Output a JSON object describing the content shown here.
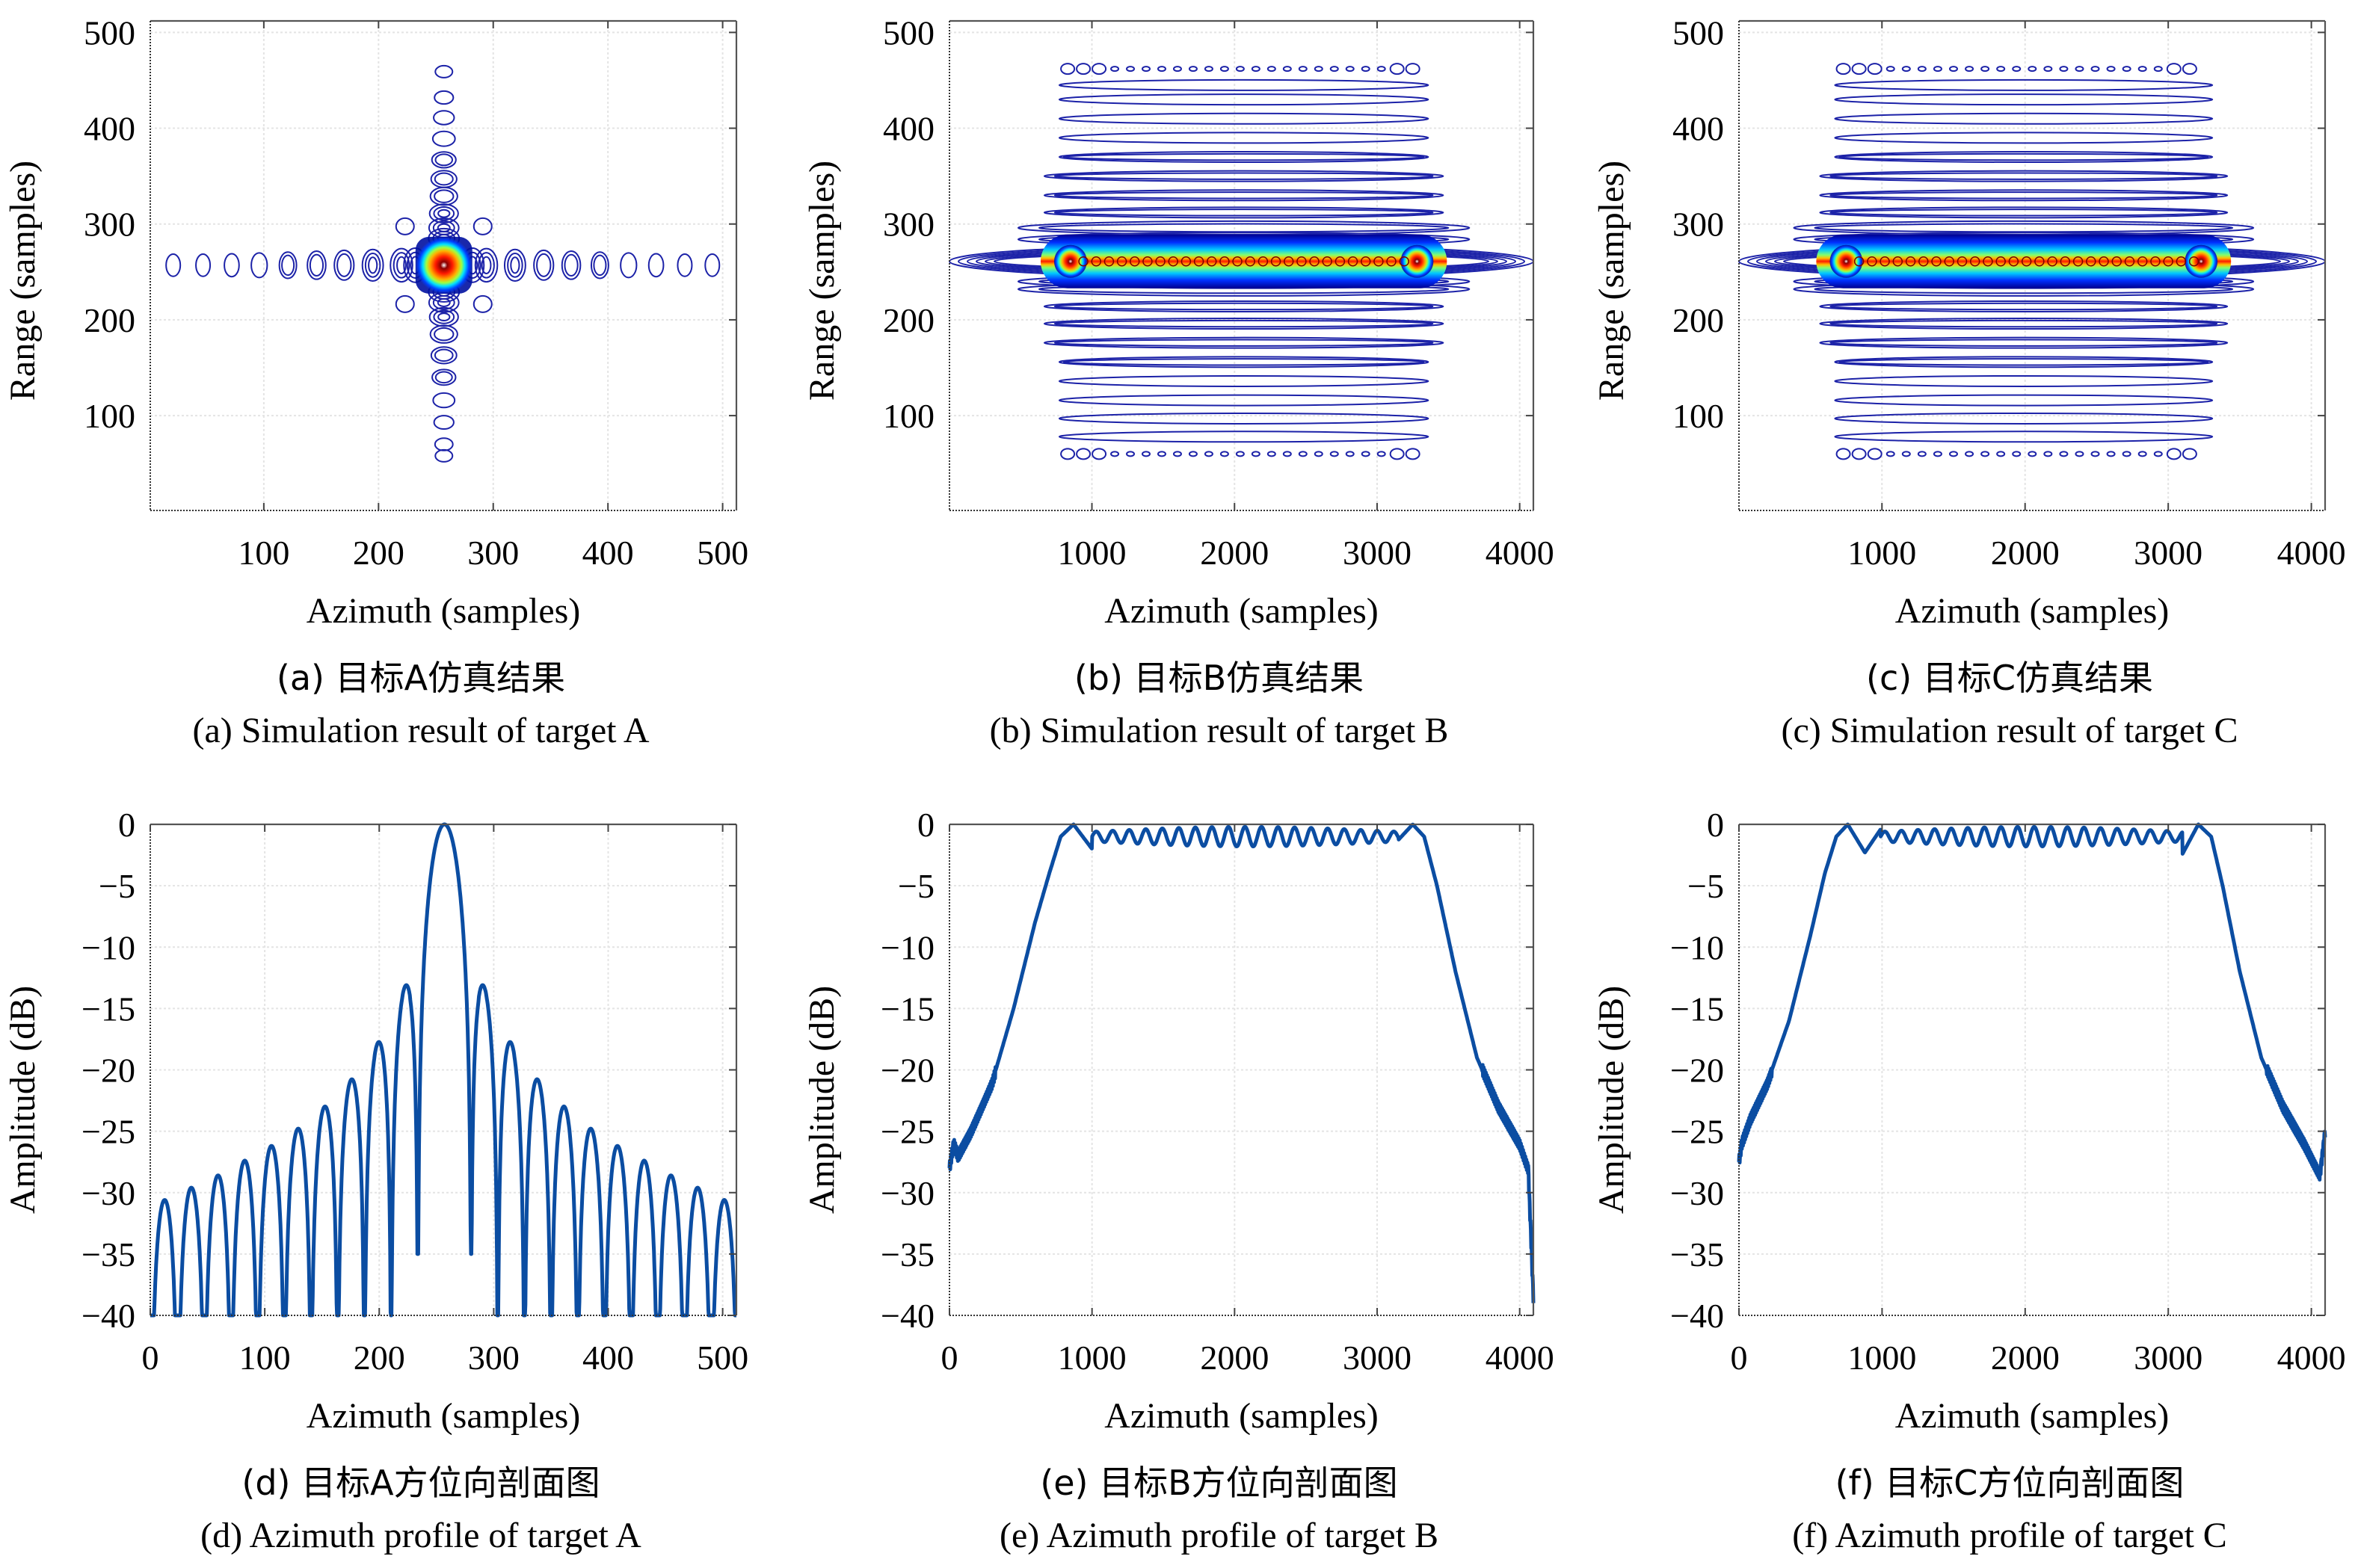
{
  "figure": {
    "panels": [
      {
        "id": "a",
        "caption_cn": "(a) 目标A仿真结果",
        "caption_en": "(a) Simulation result of target A"
      },
      {
        "id": "b",
        "caption_cn": "(b) 目标B仿真结果",
        "caption_en": "(b) Simulation result of target B"
      },
      {
        "id": "c",
        "caption_cn": "(c) 目标C仿真结果",
        "caption_en": "(c) Simulation result of target C"
      },
      {
        "id": "d",
        "caption_cn": "(d) 目标A方位向剖面图",
        "caption_en": "(d) Azimuth profile of target A"
      },
      {
        "id": "e",
        "caption_cn": "(e) 目标B方位向剖面图",
        "caption_en": "(e) Azimuth profile of target B"
      },
      {
        "id": "f",
        "caption_cn": "(f) 目标C方位向剖面图",
        "caption_en": "(f) Azimuth profile of target C"
      }
    ]
  },
  "chart_data": [
    {
      "id": "a",
      "type": "heatmap",
      "subtype": "contour",
      "title": "(a) Simulation result of target A",
      "xlabel": "Azimuth (samples)",
      "ylabel": "Range (samples)",
      "xlim": [
        1,
        512
      ],
      "ylim": [
        1,
        512
      ],
      "xticks": [
        100,
        200,
        300,
        400,
        500
      ],
      "yticks": [
        100,
        200,
        300,
        400,
        500
      ],
      "grid": true,
      "target_center": [
        257,
        257
      ],
      "sidelobes_azimuth_x": [
        21,
        47,
        72,
        96,
        121,
        146,
        170,
        195,
        220,
        232,
        282,
        294,
        319,
        344,
        368,
        393,
        418,
        442,
        467,
        491
      ],
      "sidelobes_range_y": [
        58,
        70,
        93,
        116,
        140,
        163,
        185,
        203,
        218,
        229,
        285,
        296,
        311,
        329,
        347,
        367,
        389,
        411,
        432,
        459
      ],
      "colormap": "jet",
      "colors": {
        "contour_low": "#1a1aa0",
        "peak": "#e8141c"
      }
    },
    {
      "id": "b",
      "type": "heatmap",
      "subtype": "contour",
      "title": "(b) Simulation result of target B",
      "xlabel": "Azimuth (samples)",
      "ylabel": "Range (samples)",
      "xlim": [
        1,
        4096
      ],
      "ylim": [
        1,
        512
      ],
      "xticks": [
        1000,
        2000,
        3000,
        4000
      ],
      "yticks": [
        100,
        200,
        300,
        400,
        500
      ],
      "grid": true,
      "mainlobe_range": 261,
      "mainlobe_azimuth_span": [
        850,
        3280
      ],
      "sidelobe_rows_y": [
        60,
        78,
        97,
        116,
        136,
        156,
        176,
        196,
        214,
        232,
        240,
        284,
        296,
        312,
        330,
        350,
        370,
        390,
        410,
        430,
        445,
        462
      ],
      "colormap": "jet"
    },
    {
      "id": "c",
      "type": "heatmap",
      "subtype": "contour",
      "title": "(c) Simulation result of target C",
      "xlabel": "Azimuth (samples)",
      "ylabel": "Range (samples)",
      "xlim": [
        1,
        4096
      ],
      "ylim": [
        1,
        512
      ],
      "xticks": [
        1000,
        2000,
        3000,
        4000
      ],
      "yticks": [
        100,
        200,
        300,
        400,
        500
      ],
      "grid": true,
      "mainlobe_range": 261,
      "mainlobe_azimuth_span": [
        750,
        3230
      ],
      "sidelobe_rows_y": [
        60,
        78,
        97,
        116,
        136,
        156,
        176,
        196,
        214,
        232,
        240,
        284,
        296,
        312,
        330,
        350,
        370,
        390,
        410,
        430,
        445,
        462
      ],
      "colormap": "jet"
    },
    {
      "id": "d",
      "type": "line",
      "title": "(d) Azimuth profile of target A",
      "xlabel": "Azimuth (samples)",
      "ylabel": "Amplitude (dB)",
      "xlim": [
        0,
        512
      ],
      "ylim": [
        -40,
        0
      ],
      "xticks": [
        0,
        100,
        200,
        300,
        400,
        500
      ],
      "yticks": [
        0,
        -5,
        -10,
        -15,
        -20,
        -25,
        -30,
        -35,
        -40
      ],
      "grid": true,
      "peak": {
        "x": 257,
        "y": 0
      },
      "sidelobe_peaks": [
        {
          "x": 4,
          "y": -30.6
        },
        {
          "x": 28,
          "y": -29.6
        },
        {
          "x": 52,
          "y": -28.6
        },
        {
          "x": 77,
          "y": -27.4
        },
        {
          "x": 101,
          "y": -26.2
        },
        {
          "x": 126,
          "y": -24.8
        },
        {
          "x": 150,
          "y": -23.0
        },
        {
          "x": 175,
          "y": -20.8
        },
        {
          "x": 199,
          "y": -17.8
        },
        {
          "x": 223,
          "y": -13.3
        },
        {
          "x": 291,
          "y": -13.3
        },
        {
          "x": 315,
          "y": -17.8
        },
        {
          "x": 339,
          "y": -20.8
        },
        {
          "x": 364,
          "y": -23.0
        },
        {
          "x": 388,
          "y": -24.8
        },
        {
          "x": 413,
          "y": -26.2
        },
        {
          "x": 437,
          "y": -27.4
        },
        {
          "x": 462,
          "y": -28.6
        },
        {
          "x": 486,
          "y": -29.6
        },
        {
          "x": 510,
          "y": -30.6
        }
      ],
      "nulls_x": [
        10,
        40,
        64,
        89,
        113,
        138,
        162,
        187,
        211,
        234,
        280,
        303,
        327,
        352,
        376,
        401,
        425,
        450,
        474,
        498
      ],
      "inner_null_depth": -35,
      "series_color": "#0b4da2"
    },
    {
      "id": "e",
      "type": "line",
      "title": "(e) Azimuth profile of target B",
      "xlabel": "Azimuth (samples)",
      "ylabel": "Amplitude (dB)",
      "xlim": [
        0,
        4096
      ],
      "ylim": [
        -40,
        0
      ],
      "xticks": [
        0,
        1000,
        2000,
        3000,
        4000
      ],
      "yticks": [
        0,
        -5,
        -10,
        -15,
        -20,
        -25,
        -30,
        -35,
        -40
      ],
      "grid": true,
      "x": [
        0,
        30,
        60,
        150,
        300,
        450,
        600,
        700,
        780,
        870,
        1000,
        1100,
        1500,
        2000,
        2500,
        2900,
        3050,
        3130,
        3250,
        3330,
        3420,
        3550,
        3700,
        3850,
        3950,
        4000,
        4060,
        4096
      ],
      "y": [
        -28,
        -26,
        -27,
        -25,
        -21,
        -15,
        -8,
        -4,
        -1,
        0,
        -2,
        -0.8,
        -1,
        -1,
        -1,
        -0.8,
        -2.2,
        -1.5,
        0,
        -1,
        -5,
        -12,
        -19,
        -23,
        -25,
        -26,
        -28,
        -38.5
      ],
      "ripple": {
        "start": 1000,
        "end": 3150,
        "amplitude_db": 0.8,
        "mean_db": -1
      },
      "series_color": "#0b4da2"
    },
    {
      "id": "f",
      "type": "line",
      "title": "(f) Azimuth profile of target C",
      "xlabel": "Azimuth (samples)",
      "ylabel": "Amplitude (dB)",
      "xlim": [
        0,
        4096
      ],
      "ylim": [
        -40,
        0
      ],
      "xticks": [
        0,
        1000,
        2000,
        3000,
        4000
      ],
      "yticks": [
        0,
        -5,
        -10,
        -15,
        -20,
        -25,
        -30,
        -35,
        -40
      ],
      "grid": true,
      "x": [
        0,
        20,
        80,
        200,
        350,
        500,
        600,
        680,
        760,
        880,
        990,
        1100,
        1500,
        2000,
        2500,
        2900,
        3000,
        3100,
        3210,
        3300,
        3380,
        3500,
        3650,
        3800,
        3950,
        4060,
        4096
      ],
      "y": [
        -27.5,
        -26,
        -24,
        -21,
        -16,
        -9,
        -4,
        -1,
        0,
        -2.3,
        -0.4,
        -1,
        -1,
        -1,
        -1,
        -1,
        -0.5,
        -2.4,
        0,
        -1,
        -5,
        -12,
        -19,
        -23,
        -26,
        -28.5,
        -25
      ],
      "ripple": {
        "start": 990,
        "end": 3100,
        "amplitude_db": 0.8,
        "mean_db": -1
      },
      "series_color": "#0b4da2"
    }
  ]
}
